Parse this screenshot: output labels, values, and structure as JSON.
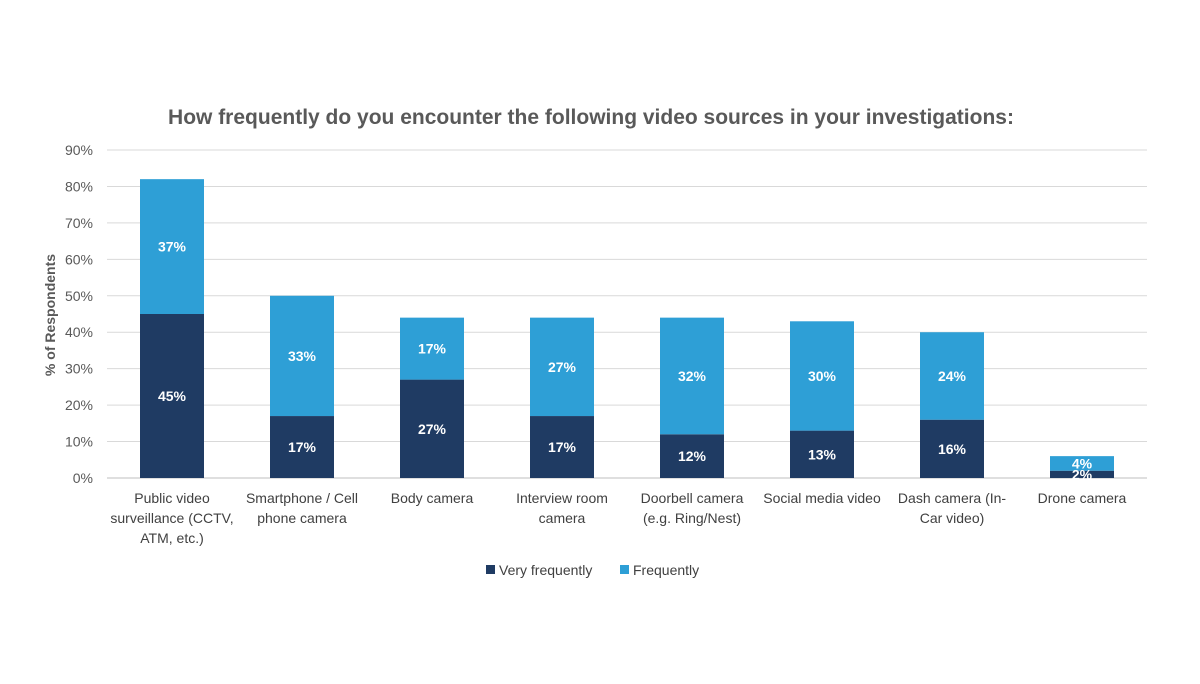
{
  "chart_data": {
    "type": "bar",
    "stacked": true,
    "title": "How frequently do you encounter the following video sources in your investigations:",
    "ylabel": "% of Respondents",
    "xlabel": "",
    "ylim": [
      0,
      90
    ],
    "yticks": [
      "0%",
      "10%",
      "20%",
      "30%",
      "40%",
      "50%",
      "60%",
      "70%",
      "80%",
      "90%"
    ],
    "grid": true,
    "legend_position": "bottom",
    "categories": [
      [
        "Public video",
        "surveillance (CCTV,",
        "ATM, etc.)"
      ],
      [
        "Smartphone / Cell",
        "phone camera"
      ],
      [
        "Body camera"
      ],
      [
        "Interview room",
        "camera"
      ],
      [
        "Doorbell camera",
        "(e.g. Ring/Nest)"
      ],
      [
        "Social media video"
      ],
      [
        "Dash camera (In-",
        "Car video)"
      ],
      [
        "Drone camera"
      ]
    ],
    "series": [
      {
        "name": "Very frequently",
        "color": "#1f3b63",
        "values": [
          45,
          17,
          27,
          17,
          12,
          13,
          16,
          2
        ],
        "labels": [
          "45%",
          "17%",
          "27%",
          "17%",
          "12%",
          "13%",
          "16%",
          "2%"
        ]
      },
      {
        "name": "Frequently",
        "color": "#2e9fd6",
        "values": [
          37,
          33,
          17,
          27,
          32,
          30,
          24,
          4
        ],
        "labels": [
          "37%",
          "33%",
          "17%",
          "27%",
          "32%",
          "30%",
          "24%",
          "4%"
        ]
      }
    ]
  }
}
